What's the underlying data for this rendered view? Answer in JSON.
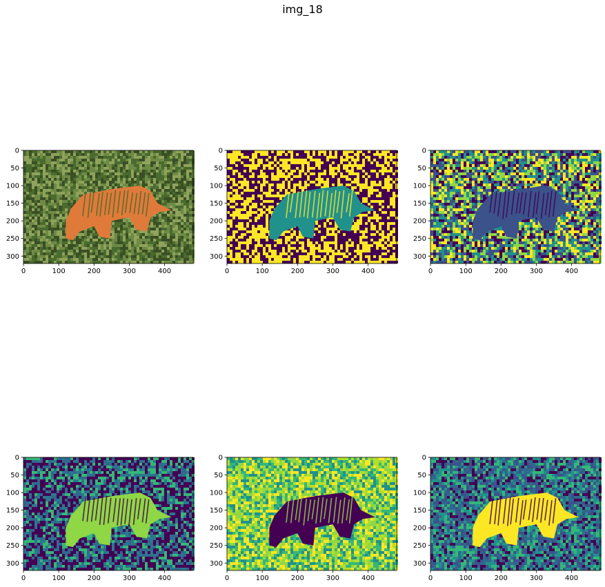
{
  "figure": {
    "title": "img_18"
  },
  "chart_data": [
    {
      "type": "heatmap",
      "title": "",
      "image": "photo of a tiger in grass (RGB)",
      "xlim": [
        0,
        481
      ],
      "ylim": [
        321,
        0
      ],
      "xticks": [
        0,
        100,
        200,
        300,
        400
      ],
      "yticks": [
        0,
        50,
        100,
        150,
        200,
        250,
        300
      ],
      "palette": [
        "#4a6b2e",
        "#6e8a45",
        "#3a4f24",
        "#8fa35c"
      ],
      "subject_color": "#e07a3a"
    },
    {
      "type": "heatmap",
      "title": "",
      "colormap": "viridis",
      "clusters": 3,
      "xlim": [
        0,
        481
      ],
      "ylim": [
        321,
        0
      ],
      "xticks": [
        0,
        100,
        200,
        300,
        400
      ],
      "yticks": [
        0,
        50,
        100,
        150,
        200,
        250,
        300
      ],
      "palette": [
        "#fde725",
        "#440154",
        "#fde725",
        "#440154"
      ],
      "subject_color": "#21918c"
    },
    {
      "type": "heatmap",
      "title": "",
      "colormap": "viridis",
      "clusters": 5,
      "xlim": [
        0,
        481
      ],
      "ylim": [
        321,
        0
      ],
      "xticks": [
        0,
        100,
        200,
        300,
        400
      ],
      "yticks": [
        0,
        50,
        100,
        150,
        200,
        250,
        300
      ],
      "palette": [
        "#440154",
        "#21918c",
        "#fde725",
        "#8fd744",
        "#3b528b"
      ],
      "subject_color": "#3b528b"
    },
    {
      "type": "heatmap",
      "title": "",
      "colormap": "viridis",
      "clusters": 5,
      "xlim": [
        0,
        481
      ],
      "ylim": [
        321,
        0
      ],
      "xticks": [
        0,
        100,
        200,
        300,
        400
      ],
      "yticks": [
        0,
        50,
        100,
        150,
        200,
        250,
        300
      ],
      "palette": [
        "#440154",
        "#31688e",
        "#2a788e",
        "#440154",
        "#35b779"
      ],
      "subject_color": "#8fd744"
    },
    {
      "type": "heatmap",
      "title": "",
      "colormap": "viridis",
      "clusters": 5,
      "xlim": [
        0,
        481
      ],
      "ylim": [
        321,
        0
      ],
      "xticks": [
        0,
        100,
        200,
        300,
        400
      ],
      "yticks": [
        0,
        50,
        100,
        150,
        200,
        250,
        300
      ],
      "palette": [
        "#8fd744",
        "#35b779",
        "#fde725",
        "#21918c",
        "#b5de2b"
      ],
      "subject_color": "#440154"
    },
    {
      "type": "heatmap",
      "title": "",
      "colormap": "viridis",
      "clusters": 6,
      "xlim": [
        0,
        481
      ],
      "ylim": [
        321,
        0
      ],
      "xticks": [
        0,
        100,
        200,
        300,
        400
      ],
      "yticks": [
        0,
        50,
        100,
        150,
        200,
        250,
        300
      ],
      "palette": [
        "#440154",
        "#31688e",
        "#21918c",
        "#3b528b",
        "#35b779"
      ],
      "subject_color": "#fde725"
    }
  ]
}
